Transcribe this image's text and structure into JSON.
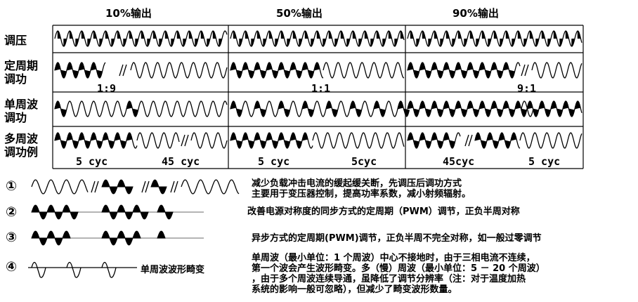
{
  "headers": [
    "10%输出",
    "50%输出",
    "90%输出"
  ],
  "rows": [
    {
      "label": "调压"
    },
    {
      "label": "定周期\n调功",
      "ratios": [
        "1:9",
        "1:1",
        "9:1"
      ]
    },
    {
      "label": "单周波\n调功"
    },
    {
      "label": "多周波\n调功例",
      "cycles": [
        "5 cyc",
        "45 cyc",
        "5 cyc",
        "5cyc",
        "45cyc",
        "5 cyc"
      ]
    }
  ],
  "legend": [
    {
      "num": "①",
      "text": "减少负载冲击电流的缓起缓关断，先调压后调功方式\n主要用于变压器控制，提高功率系数，减小射频辐射。"
    },
    {
      "num": "②",
      "text": "改善电源对称度的同步方式的定周期（PWM）调节，正负半周对称"
    },
    {
      "num": "③",
      "text": "异步方式的定周期(PWM)调节，正负半周不完全对称，如一般过零调节"
    },
    {
      "num": "④",
      "text": "单周波波形畸变",
      "note": "单周波（最小单位：1 个周波）中心不接地时，由于三相电流不连续，\n第一个波会产生波形畸变。多（慢）周波（最小单位：5 － 20 个周波）\n，由于多个周波连续导通，虽降低了调节分辨率（注：对于温度加热\n系统的影响一般可忽略），但减少了畸变波形数量。"
    }
  ]
}
